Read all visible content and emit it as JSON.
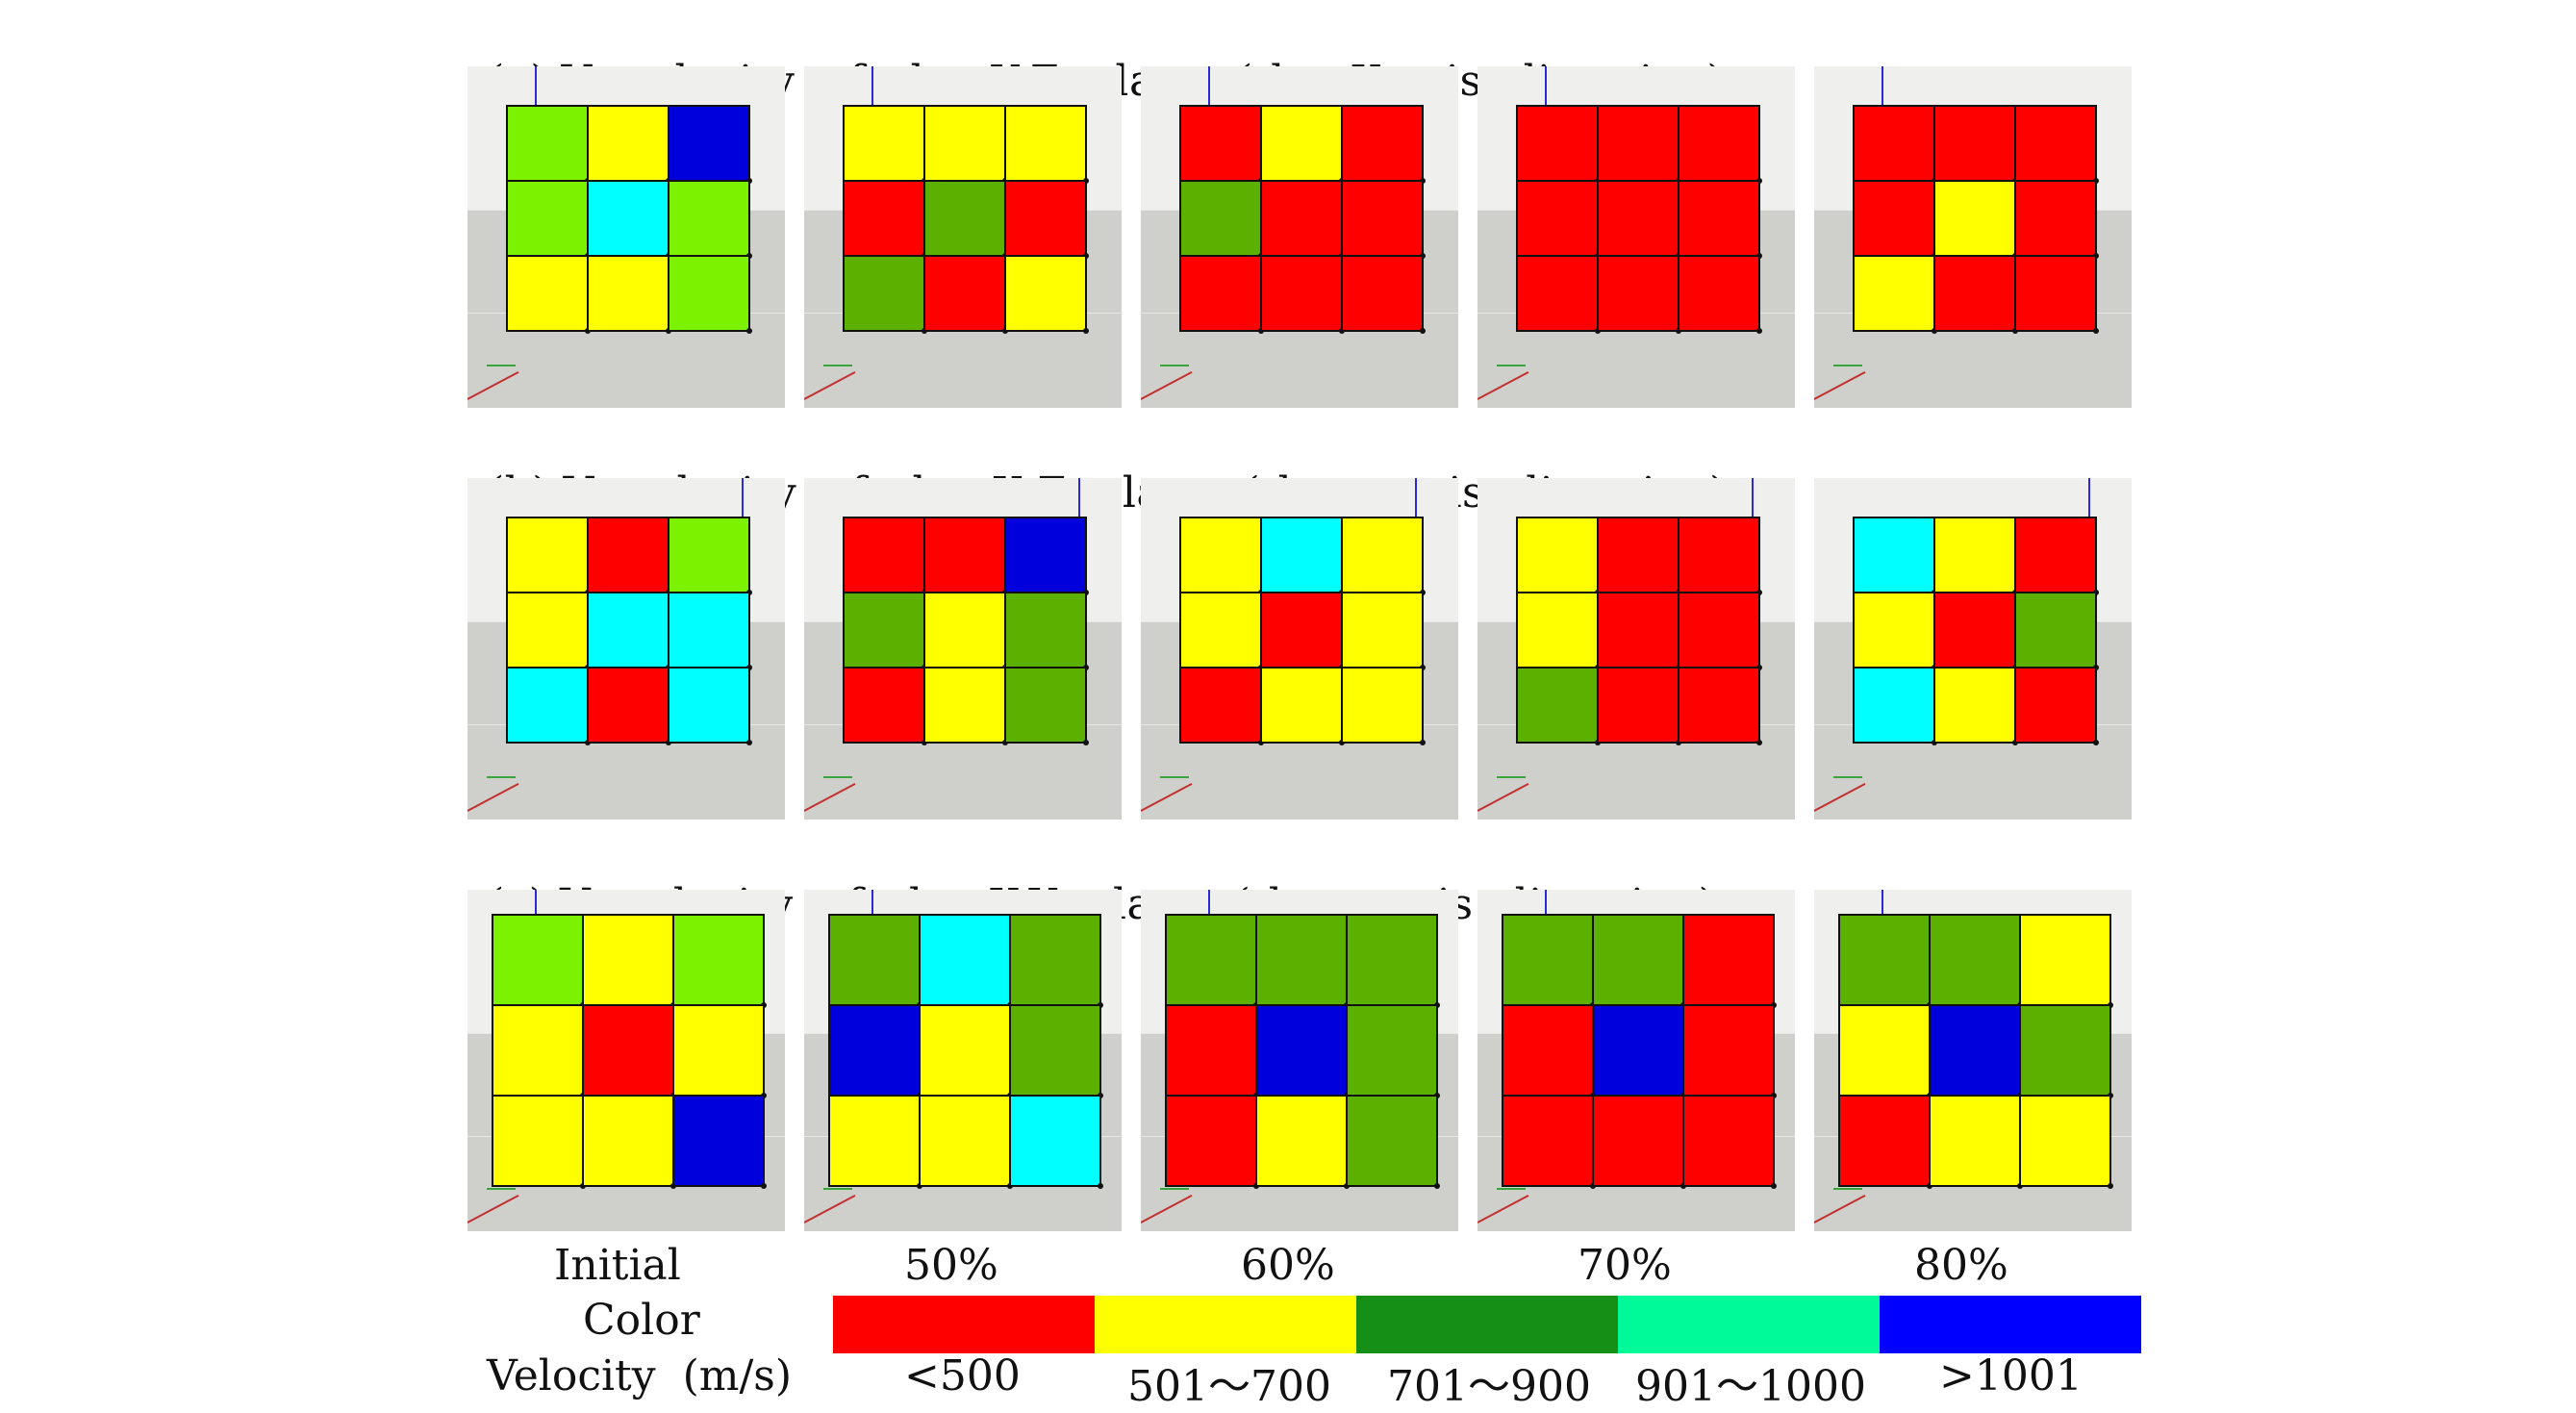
{
  "rows": [
    {
      "title_prefix": "(a) V",
      "title_sub": "p",
      "title_rest": "-velocity  of  the  Y-Z  plane  (the  X-axis  direction)",
      "panels": [
        [
          "#7cf200",
          "#ffff00",
          "#0000dd",
          "#7cf200",
          "#00ffff",
          "#7cf200",
          "#ffff00",
          "#ffff00",
          "#7cf200"
        ],
        [
          "#ffff00",
          "#ffff00",
          "#ffff00",
          "#ff0000",
          "#5cb000",
          "#ff0000",
          "#5cb000",
          "#ff0000",
          "#ffff00"
        ],
        [
          "#ff0000",
          "#ffff00",
          "#ff0000",
          "#5cb000",
          "#ff0000",
          "#ff0000",
          "#ff0000",
          "#ff0000",
          "#ff0000"
        ],
        [
          "#ff0000",
          "#ff0000",
          "#ff0000",
          "#ff0000",
          "#ff0000",
          "#ff0000",
          "#ff0000",
          "#ff0000",
          "#ff0000"
        ],
        [
          "#ff0000",
          "#ff0000",
          "#ff0000",
          "#ff0000",
          "#ffff00",
          "#ff0000",
          "#ffff00",
          "#ff0000",
          "#ff0000"
        ]
      ]
    },
    {
      "title_prefix": "(b) V",
      "title_sub": "p",
      "title_rest": "-velocity  of  the  X-Z  plane  (the  y-axis  direction)",
      "panels": [
        [
          "#ffff00",
          "#ff0000",
          "#7cf200",
          "#ffff00",
          "#00ffff",
          "#00ffff",
          "#00ffff",
          "#ff0000",
          "#00ffff"
        ],
        [
          "#ff0000",
          "#ff0000",
          "#0000dd",
          "#5cb000",
          "#ffff00",
          "#5cb000",
          "#ff0000",
          "#ffff00",
          "#5cb000"
        ],
        [
          "#ffff00",
          "#00ffff",
          "#ffff00",
          "#ffff00",
          "#ff0000",
          "#ffff00",
          "#ff0000",
          "#ffff00",
          "#ffff00"
        ],
        [
          "#ffff00",
          "#ff0000",
          "#ff0000",
          "#ffff00",
          "#ff0000",
          "#ff0000",
          "#5cb000",
          "#ff0000",
          "#ff0000"
        ],
        [
          "#00ffff",
          "#ffff00",
          "#ff0000",
          "#ffff00",
          "#ff0000",
          "#5cb000",
          "#00ffff",
          "#ffff00",
          "#ff0000"
        ]
      ]
    },
    {
      "title_prefix": "(c) V",
      "title_sub": "p",
      "title_rest": "-velocity  of  the  X-Y  plane  (the  z-axis  direction)",
      "panels": [
        [
          "#7cf200",
          "#ffff00",
          "#7cf200",
          "#ffff00",
          "#ff0000",
          "#ffff00",
          "#ffff00",
          "#ffff00",
          "#0000dd"
        ],
        [
          "#5cb000",
          "#00ffff",
          "#5cb000",
          "#0000dd",
          "#ffff00",
          "#5cb000",
          "#ffff00",
          "#ffff00",
          "#00ffff"
        ],
        [
          "#5cb000",
          "#5cb000",
          "#5cb000",
          "#ff0000",
          "#0000dd",
          "#5cb000",
          "#ff0000",
          "#ffff00",
          "#5cb000"
        ],
        [
          "#5cb000",
          "#5cb000",
          "#ff0000",
          "#ff0000",
          "#0000dd",
          "#ff0000",
          "#ff0000",
          "#ff0000",
          "#ff0000"
        ],
        [
          "#5cb000",
          "#5cb000",
          "#ffff00",
          "#ffff00",
          "#0000dd",
          "#5cb000",
          "#ff0000",
          "#ffff00",
          "#ffff00"
        ]
      ]
    }
  ],
  "legend": {
    "initial_label": "Initial",
    "color_label": "Color",
    "velocity_label": "Velocity  (m/s)",
    "percentages": [
      "50%",
      "60%",
      "70%",
      "80%"
    ],
    "colors": [
      "#ff0000",
      "#ffff00",
      "#158f15",
      "#00fa9a",
      "#0000ff"
    ],
    "ranges": [
      "<500",
      "501～700",
      "701～900",
      "901～1000",
      ">1001"
    ]
  }
}
